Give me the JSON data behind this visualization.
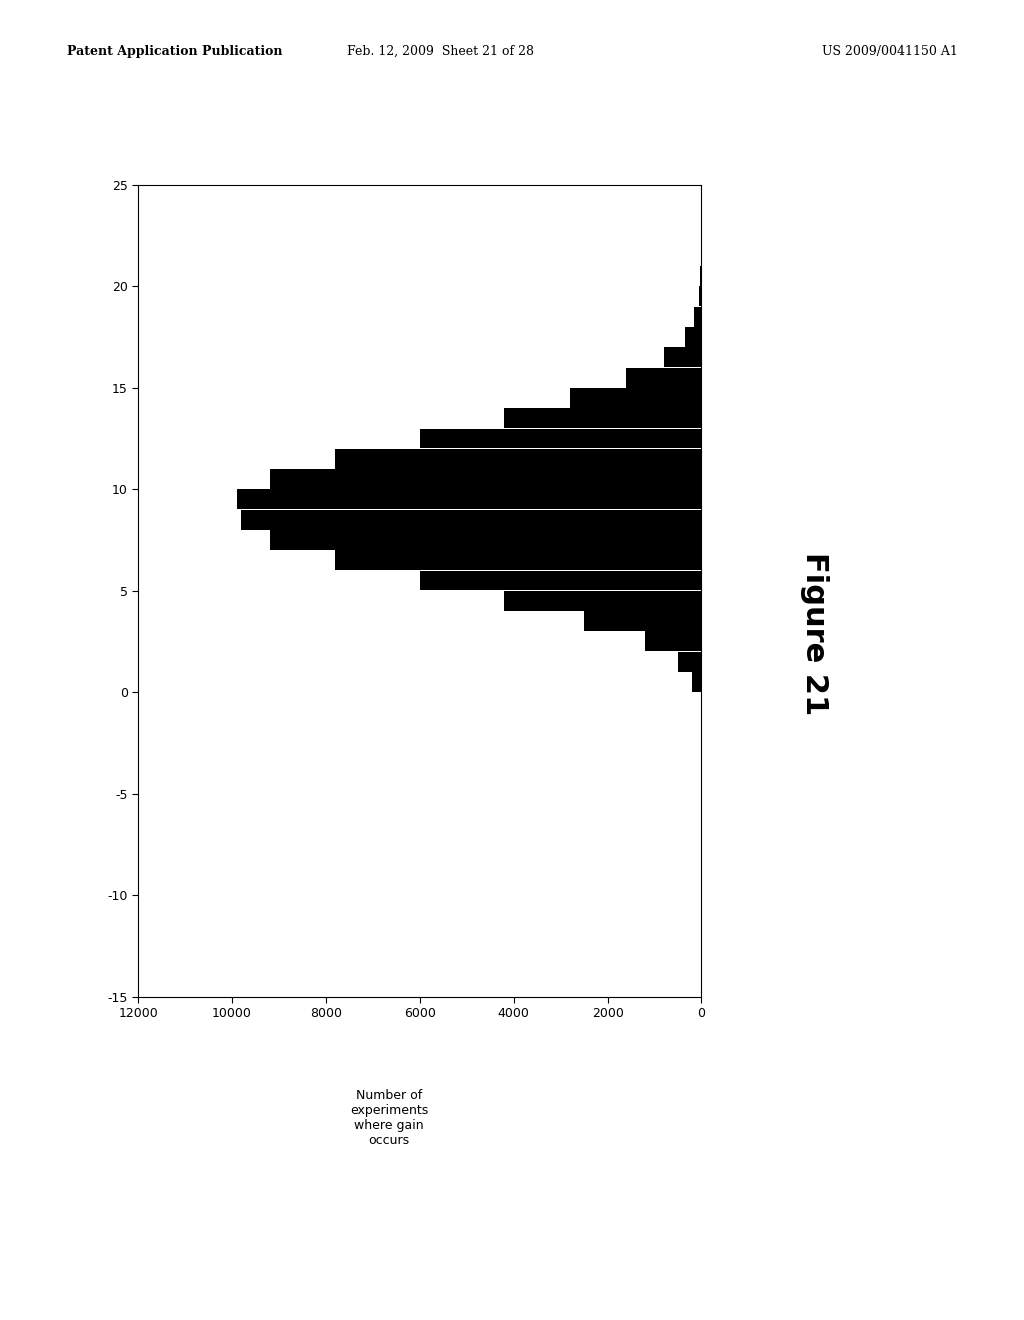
{
  "figure_label": "Figure 21",
  "header_left": "Patent Application Publication",
  "header_mid": "Feb. 12, 2009  Sheet 21 of 28",
  "header_right": "US 2009/0041150 A1",
  "xlim": [
    0,
    12000
  ],
  "ylim": [
    -15,
    25
  ],
  "xticks": [
    0,
    2000,
    4000,
    6000,
    8000,
    10000,
    12000
  ],
  "yticks": [
    -15,
    -10,
    -5,
    0,
    5,
    10,
    15,
    20,
    25
  ],
  "bar_color": "#000000",
  "background_color": "#ffffff",
  "xlabel": "Number of\nexperiments\nwhere gain\noccurs",
  "bin_centers": [
    0.5,
    1.5,
    2.5,
    3.5,
    4.5,
    5.5,
    6.5,
    7.5,
    8.5,
    9.5,
    10.5,
    11.5,
    12.5,
    13.5,
    14.5,
    15.5,
    16.5,
    17.5,
    18.5,
    19.5,
    20.5,
    21.5,
    22.5,
    23.5,
    24.5
  ],
  "counts": [
    200,
    500,
    1200,
    2500,
    4200,
    6000,
    7800,
    9200,
    9800,
    9900,
    9200,
    7800,
    6000,
    4200,
    2800,
    1600,
    800,
    350,
    150,
    60,
    25,
    10,
    5,
    2,
    1
  ]
}
